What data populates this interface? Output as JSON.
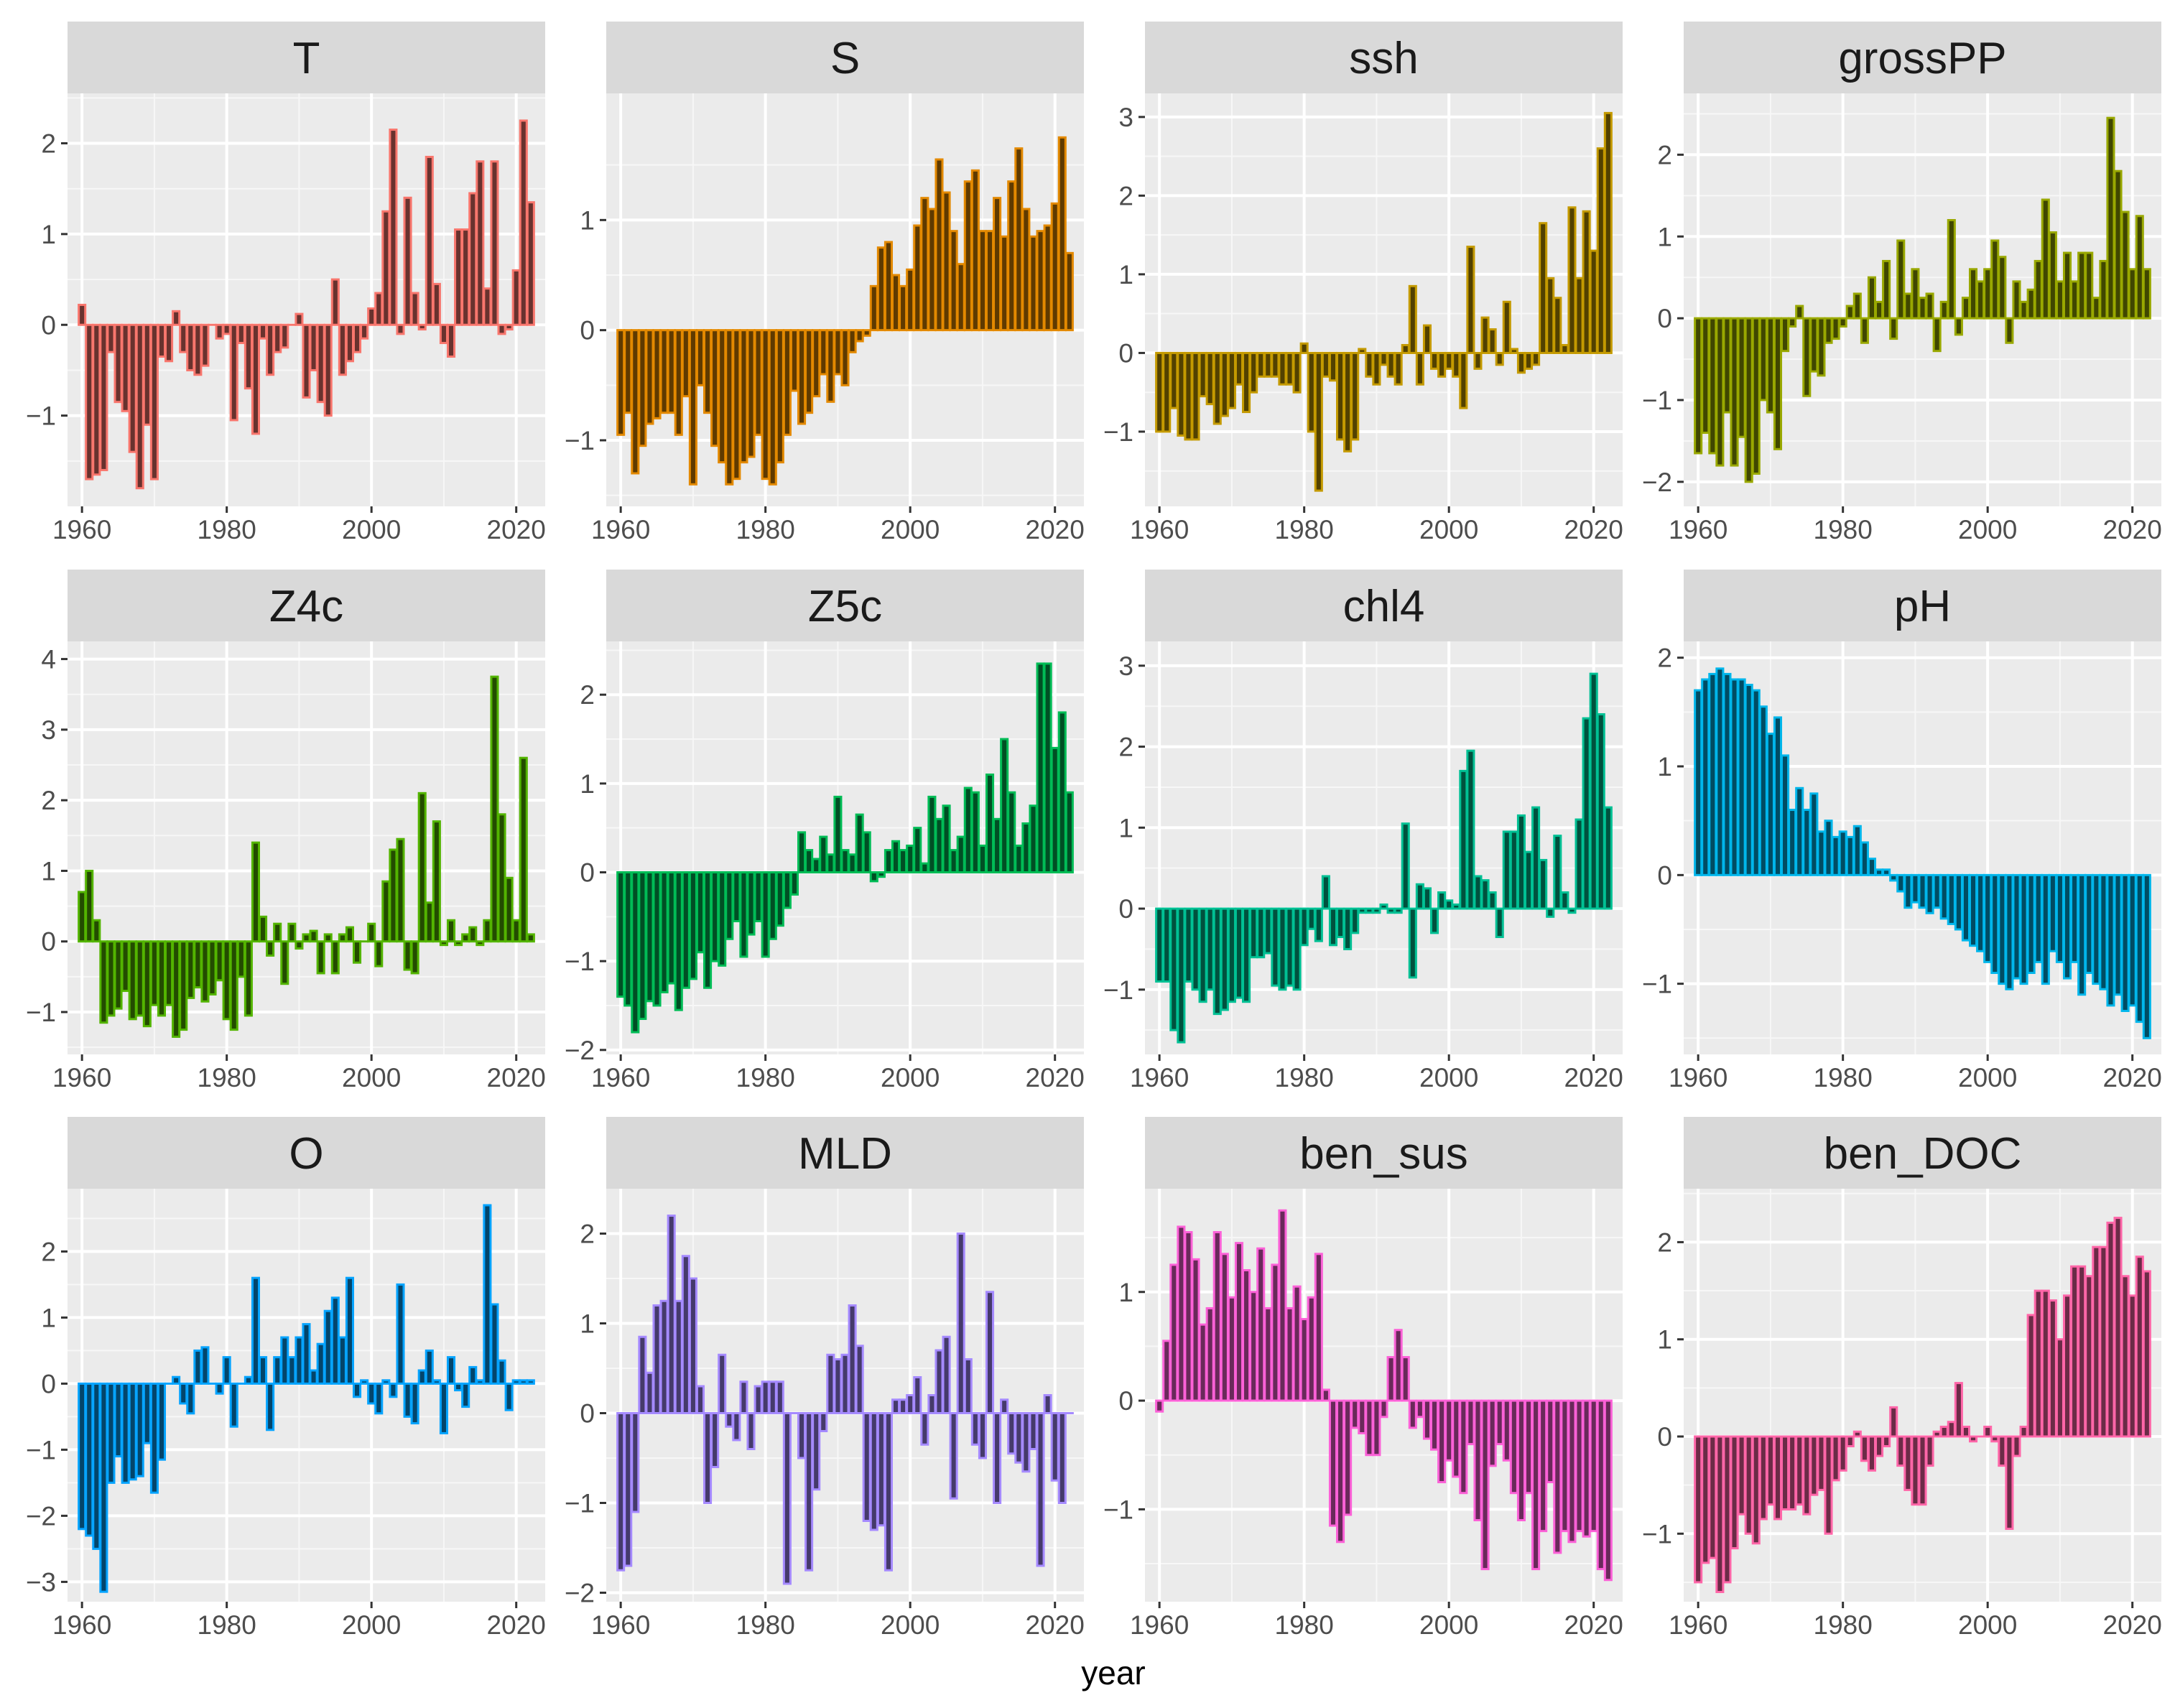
{
  "chart_data": {
    "type": "bar",
    "layout": "facet-grid-3x4",
    "title": "",
    "xlabel": "year",
    "ylabel": "",
    "grid": true,
    "x": [
      1960,
      1961,
      1962,
      1963,
      1964,
      1965,
      1966,
      1967,
      1968,
      1969,
      1970,
      1971,
      1972,
      1973,
      1974,
      1975,
      1976,
      1977,
      1978,
      1979,
      1980,
      1981,
      1982,
      1983,
      1984,
      1985,
      1986,
      1987,
      1988,
      1989,
      1990,
      1991,
      1992,
      1993,
      1994,
      1995,
      1996,
      1997,
      1998,
      1999,
      2000,
      2001,
      2002,
      2003,
      2004,
      2005,
      2006,
      2007,
      2008,
      2009,
      2010,
      2011,
      2012,
      2013,
      2014,
      2015,
      2016,
      2017,
      2018,
      2019,
      2020,
      2021,
      2022
    ],
    "x_ticks": [
      1960,
      1980,
      2000,
      2020
    ],
    "xlim": [
      1958,
      2024
    ],
    "panels": [
      {
        "name": "T",
        "color": "#F8766D",
        "ylim": [
          -2.0,
          2.55
        ],
        "y_ticks": [
          -1,
          0,
          1,
          2
        ],
        "values": [
          0.22,
          -1.7,
          -1.65,
          -1.6,
          -0.3,
          -0.85,
          -0.95,
          -1.4,
          -1.8,
          -1.1,
          -1.7,
          -0.35,
          -0.4,
          0.15,
          -0.3,
          -0.5,
          -0.55,
          -0.45,
          0,
          -0.15,
          -0.1,
          -1.05,
          -0.2,
          -0.7,
          -1.2,
          -0.15,
          -0.55,
          -0.3,
          -0.25,
          0,
          0.12,
          -0.8,
          -0.5,
          -0.85,
          -1.0,
          0.5,
          -0.55,
          -0.4,
          -0.3,
          -0.15,
          0.18,
          0.35,
          1.25,
          2.15,
          -0.1,
          1.4,
          0.35,
          -0.05,
          1.85,
          0.45,
          -0.2,
          -0.35,
          1.05,
          1.05,
          1.45,
          1.8,
          0.4,
          1.8,
          -0.1,
          -0.05,
          0.6,
          2.25,
          1.35
        ]
      },
      {
        "name": "S",
        "color": "#E38900",
        "ylim": [
          -1.6,
          2.15
        ],
        "y_ticks": [
          -1,
          0,
          1
        ],
        "values": [
          -0.95,
          -0.75,
          -1.3,
          -1.05,
          -0.85,
          -0.8,
          -0.75,
          -0.75,
          -0.95,
          -0.6,
          -1.4,
          -0.5,
          -0.75,
          -1.05,
          -1.2,
          -1.4,
          -1.35,
          -1.2,
          -1.15,
          -0.95,
          -1.35,
          -1.4,
          -1.2,
          -0.95,
          -0.55,
          -0.85,
          -0.75,
          -0.6,
          -0.4,
          -0.65,
          -0.4,
          -0.5,
          -0.2,
          -0.1,
          -0.05,
          0.4,
          0.75,
          0.8,
          0.5,
          0.4,
          0.55,
          0.95,
          1.2,
          1.1,
          1.55,
          1.25,
          0.9,
          0.6,
          1.35,
          1.45,
          0.9,
          0.9,
          1.2,
          0.85,
          1.35,
          1.65,
          1.1,
          0.85,
          0.9,
          0.95,
          1.15,
          1.75,
          0.7
        ]
      },
      {
        "name": "ssh",
        "color": "#C49A00",
        "ylim": [
          -1.95,
          3.3
        ],
        "y_ticks": [
          -1,
          0,
          1,
          2,
          3
        ],
        "values": [
          -1.0,
          -1.0,
          -0.7,
          -1.05,
          -1.1,
          -1.1,
          -0.55,
          -0.65,
          -0.9,
          -0.8,
          -0.7,
          -0.4,
          -0.75,
          -0.5,
          -0.3,
          -0.3,
          -0.3,
          -0.4,
          -0.4,
          -0.5,
          0.12,
          -1.0,
          -1.75,
          -0.3,
          -0.35,
          -1.1,
          -1.25,
          -1.1,
          0.05,
          -0.3,
          -0.4,
          -0.15,
          -0.3,
          -0.4,
          0.1,
          0.85,
          -0.4,
          0.35,
          -0.2,
          -0.3,
          -0.2,
          -0.3,
          -0.7,
          1.35,
          -0.2,
          0.45,
          0.3,
          -0.15,
          0.65,
          0.05,
          -0.25,
          -0.2,
          -0.15,
          1.65,
          0.95,
          0.7,
          0.1,
          1.85,
          0.95,
          1.8,
          1.3,
          2.6,
          3.05
        ]
      },
      {
        "name": "grossPP",
        "color": "#99A800",
        "ylim": [
          -2.3,
          2.75
        ],
        "y_ticks": [
          -2,
          -1,
          0,
          1,
          2
        ],
        "values": [
          -1.65,
          -1.4,
          -1.65,
          -1.8,
          -1.15,
          -1.8,
          -1.45,
          -2.0,
          -1.9,
          -1.0,
          -1.15,
          -1.6,
          -0.4,
          -0.1,
          0.15,
          -0.95,
          -0.65,
          -0.7,
          -0.3,
          -0.25,
          -0.1,
          0.15,
          0.3,
          -0.3,
          0.5,
          0.2,
          0.7,
          -0.25,
          0.95,
          0.3,
          0.6,
          0.25,
          0.3,
          -0.4,
          0.2,
          1.2,
          -0.2,
          0.25,
          0.6,
          0.45,
          0.6,
          0.95,
          0.75,
          -0.3,
          0.45,
          0.2,
          0.35,
          0.7,
          1.45,
          1.05,
          0.45,
          0.8,
          0.45,
          0.8,
          0.8,
          0.25,
          0.7,
          2.45,
          1.8,
          1.3,
          0.6,
          1.25,
          0.6
        ]
      },
      {
        "name": "Z4c",
        "color": "#53B400",
        "ylim": [
          -1.6,
          4.25
        ],
        "y_ticks": [
          -1,
          0,
          1,
          2,
          3,
          4
        ],
        "values": [
          0.7,
          1.0,
          0.3,
          -1.15,
          -1.05,
          -0.95,
          -0.7,
          -1.1,
          -1.05,
          -1.2,
          -0.9,
          -1.05,
          -0.9,
          -1.35,
          -1.25,
          -0.8,
          -0.65,
          -0.85,
          -0.75,
          -0.55,
          -1.1,
          -1.25,
          -0.5,
          -1.05,
          1.4,
          0.35,
          -0.2,
          0.25,
          -0.6,
          0.25,
          -0.1,
          0.1,
          0.15,
          -0.45,
          0.1,
          -0.45,
          0.1,
          0.2,
          -0.3,
          0,
          0.25,
          -0.35,
          0.85,
          1.3,
          1.45,
          -0.4,
          -0.45,
          2.1,
          0.55,
          1.7,
          -0.05,
          0.3,
          -0.05,
          0.1,
          0.2,
          -0.05,
          0.3,
          3.75,
          1.8,
          0.9,
          0.3,
          2.6,
          0.1
        ]
      },
      {
        "name": "Z5c",
        "color": "#00BC56",
        "ylim": [
          -2.05,
          2.6
        ],
        "y_ticks": [
          -2,
          -1,
          0,
          1,
          2
        ],
        "values": [
          -1.4,
          -1.5,
          -1.8,
          -1.65,
          -1.45,
          -1.5,
          -1.35,
          -1.25,
          -1.55,
          -1.3,
          -1.2,
          -0.9,
          -1.3,
          -1.0,
          -1.05,
          -0.75,
          -0.55,
          -0.95,
          -0.7,
          -0.55,
          -0.95,
          -0.75,
          -0.6,
          -0.4,
          -0.25,
          0.45,
          0.25,
          0.15,
          0.4,
          0.2,
          0.85,
          0.25,
          0.2,
          0.65,
          0.45,
          -0.1,
          -0.05,
          0.25,
          0.35,
          0.25,
          0.3,
          0.5,
          0.1,
          0.85,
          0.6,
          0.75,
          0.25,
          0.4,
          0.95,
          0.9,
          0.3,
          1.1,
          0.6,
          1.5,
          0.9,
          0.3,
          0.55,
          0.75,
          2.35,
          2.35,
          1.4,
          1.8,
          0.9
        ]
      },
      {
        "name": "chl4",
        "color": "#00C094",
        "ylim": [
          -1.8,
          3.3
        ],
        "y_ticks": [
          -1,
          0,
          1,
          2,
          3
        ],
        "values": [
          -0.9,
          -0.9,
          -1.5,
          -1.65,
          -0.9,
          -1.0,
          -1.15,
          -1.0,
          -1.3,
          -1.25,
          -1.15,
          -1.1,
          -1.15,
          -0.6,
          -0.6,
          -0.55,
          -0.95,
          -1.0,
          -0.95,
          -1.0,
          -0.45,
          -0.25,
          -0.4,
          0.4,
          -0.45,
          -0.35,
          -0.5,
          -0.3,
          -0.05,
          -0.05,
          -0.05,
          0.05,
          -0.05,
          -0.05,
          1.05,
          -0.85,
          0.3,
          0.25,
          -0.3,
          0.2,
          0.1,
          0.05,
          1.7,
          1.95,
          0.4,
          0.35,
          0.2,
          -0.35,
          0.95,
          0.95,
          1.15,
          0.7,
          1.25,
          0.6,
          -0.1,
          0.9,
          0.2,
          -0.05,
          1.1,
          2.35,
          2.9,
          2.4,
          1.25
        ]
      },
      {
        "name": "pH",
        "color": "#00B6EB",
        "ylim": [
          -1.65,
          2.15
        ],
        "y_ticks": [
          -1,
          0,
          1,
          2
        ],
        "values": [
          1.7,
          1.8,
          1.85,
          1.9,
          1.85,
          1.8,
          1.8,
          1.75,
          1.7,
          1.55,
          1.3,
          1.45,
          1.1,
          0.6,
          0.8,
          0.6,
          0.75,
          0.4,
          0.5,
          0.35,
          0.4,
          0.35,
          0.45,
          0.3,
          0.15,
          0.05,
          0.05,
          -0.05,
          -0.15,
          -0.3,
          -0.25,
          -0.3,
          -0.35,
          -0.3,
          -0.4,
          -0.45,
          -0.5,
          -0.6,
          -0.65,
          -0.7,
          -0.8,
          -0.9,
          -1.0,
          -1.05,
          -0.95,
          -1.0,
          -0.9,
          -0.8,
          -1.0,
          -0.7,
          -0.8,
          -0.95,
          -0.8,
          -1.1,
          -0.9,
          -1.0,
          -1.05,
          -1.2,
          -1.1,
          -1.25,
          -1.2,
          -1.35,
          -1.5
        ]
      },
      {
        "name": "O",
        "color": "#06A4FF",
        "ylim": [
          -3.3,
          2.95
        ],
        "y_ticks": [
          -3,
          -2,
          -1,
          0,
          1,
          2
        ],
        "values": [
          -2.2,
          -2.3,
          -2.5,
          -3.15,
          -1.5,
          -1.1,
          -1.5,
          -1.45,
          -1.4,
          -0.9,
          -1.65,
          -1.15,
          0,
          0.1,
          -0.3,
          -0.45,
          0.5,
          0.55,
          0,
          -0.15,
          0.4,
          -0.65,
          0,
          0.1,
          1.6,
          0.4,
          -0.7,
          0.4,
          0.7,
          0.4,
          0.7,
          0.9,
          0.2,
          0.6,
          1.1,
          1.3,
          0.7,
          1.6,
          -0.2,
          0.05,
          -0.3,
          -0.45,
          0.05,
          -0.2,
          1.5,
          -0.5,
          -0.6,
          0.2,
          0.5,
          0.05,
          -0.75,
          0.4,
          -0.1,
          -0.35,
          0.25,
          0.05,
          2.7,
          1.2,
          0.35,
          -0.4,
          0.05,
          0.05,
          0.05
        ]
      },
      {
        "name": "MLD",
        "color": "#A58AFF",
        "ylim": [
          -2.1,
          2.5
        ],
        "y_ticks": [
          -2,
          -1,
          0,
          1,
          2
        ],
        "values": [
          -1.75,
          -1.7,
          -1.1,
          0.85,
          0.45,
          1.2,
          1.25,
          2.2,
          1.25,
          1.75,
          1.5,
          0.3,
          -1.0,
          -0.6,
          0.65,
          -0.15,
          -0.3,
          0.35,
          -0.4,
          0.3,
          0.35,
          0.35,
          0.35,
          -1.9,
          0,
          -0.5,
          -1.75,
          -0.85,
          -0.2,
          0.65,
          0.6,
          0.65,
          1.2,
          0.75,
          -1.2,
          -1.3,
          -1.25,
          -1.75,
          0.15,
          0.15,
          0.2,
          0.4,
          -0.35,
          0.2,
          0.7,
          0.85,
          -0.95,
          2.0,
          0.6,
          -0.35,
          -0.5,
          1.35,
          -1.0,
          0.15,
          -0.45,
          -0.55,
          -0.65,
          -0.4,
          -1.7,
          0.2,
          -0.75,
          -1.0,
          0
        ]
      },
      {
        "name": "ben_sus",
        "color": "#FB61D7",
        "ylim": [
          -1.85,
          1.95
        ],
        "y_ticks": [
          -1,
          0,
          1
        ],
        "values": [
          -0.1,
          0.55,
          1.25,
          1.6,
          1.55,
          1.3,
          0.7,
          0.85,
          1.55,
          1.35,
          0.95,
          1.45,
          1.2,
          1.0,
          1.4,
          0.85,
          1.25,
          1.75,
          0.85,
          1.05,
          0.75,
          0.95,
          1.35,
          0.1,
          -1.15,
          -1.3,
          -1.05,
          -0.25,
          -0.3,
          -0.5,
          -0.5,
          -0.15,
          0.4,
          0.65,
          0.4,
          -0.25,
          -0.15,
          -0.35,
          -0.45,
          -0.75,
          -0.55,
          -0.7,
          -0.85,
          -0.4,
          -1.1,
          -1.55,
          -0.6,
          -0.4,
          -0.55,
          -0.85,
          -1.1,
          -0.85,
          -1.55,
          -1.2,
          -0.75,
          -1.4,
          -1.2,
          -1.3,
          -1.2,
          -1.25,
          -1.2,
          -1.55,
          -1.65
        ]
      },
      {
        "name": "ben_DOC",
        "color": "#FF66A8",
        "ylim": [
          -1.7,
          2.55
        ],
        "y_ticks": [
          -1,
          0,
          1,
          2
        ],
        "values": [
          -1.5,
          -1.3,
          -1.25,
          -1.6,
          -1.5,
          -1.15,
          -0.8,
          -1.0,
          -1.1,
          -0.85,
          -0.7,
          -0.85,
          -0.75,
          -0.75,
          -0.7,
          -0.8,
          -0.6,
          -0.55,
          -1.0,
          -0.45,
          -0.35,
          -0.1,
          0.05,
          -0.25,
          -0.35,
          -0.2,
          -0.1,
          0.3,
          -0.3,
          -0.55,
          -0.7,
          -0.7,
          -0.3,
          0.05,
          0.1,
          0.15,
          0.55,
          0.1,
          -0.05,
          0,
          0.1,
          -0.05,
          -0.3,
          -0.95,
          -0.2,
          0.1,
          1.25,
          1.5,
          1.5,
          1.4,
          1.0,
          1.45,
          1.75,
          1.75,
          1.65,
          1.95,
          1.95,
          2.2,
          2.25,
          1.65,
          1.45,
          1.85,
          1.7
        ]
      }
    ]
  }
}
